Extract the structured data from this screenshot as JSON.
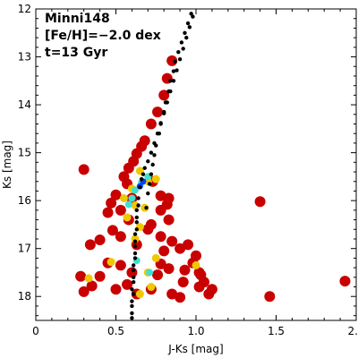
{
  "chart_data": {
    "type": "scatter",
    "title": "",
    "xlabel": "J-Ks [mag]",
    "ylabel": "Ks [mag]",
    "xlim": [
      0,
      2
    ],
    "ylim": [
      18.5,
      12
    ],
    "y_inverted": true,
    "x_ticks": [
      0,
      0.5,
      1.0,
      1.5,
      2.0
    ],
    "x_tick_labels": [
      "0",
      "0.5",
      "1.0",
      "1.5",
      "2.0"
    ],
    "y_ticks": [
      12,
      13,
      14,
      15,
      16,
      17,
      18
    ],
    "y_tick_labels": [
      "12",
      "13",
      "14",
      "15",
      "16",
      "17",
      "18"
    ],
    "grid": false,
    "legend": "none",
    "annotations": [
      "Minni148",
      "[Fe/H]=−2.0 dex",
      "t=13 Gyr"
    ],
    "colors": {
      "stars": "#c80000",
      "density_mid": "#f0c800",
      "density_high": "#40e0d0",
      "density_peak": "#0040ff",
      "isochrone": "#000000"
    },
    "series": [
      {
        "kind": "stars",
        "points": [
          [
            0.85,
            13.08
          ],
          [
            0.82,
            13.45
          ],
          [
            0.8,
            13.8
          ],
          [
            0.76,
            14.15
          ],
          [
            0.72,
            14.4
          ],
          [
            0.68,
            14.75
          ],
          [
            0.66,
            14.87
          ],
          [
            0.63,
            15.02
          ],
          [
            0.61,
            15.18
          ],
          [
            0.58,
            15.32
          ],
          [
            0.6,
            15.95
          ],
          [
            0.3,
            15.35
          ],
          [
            0.55,
            15.5
          ],
          [
            0.57,
            15.65
          ],
          [
            0.73,
            15.6
          ],
          [
            0.78,
            15.9
          ],
          [
            0.83,
            15.95
          ],
          [
            0.82,
            16.08
          ],
          [
            0.5,
            15.88
          ],
          [
            0.53,
            16.2
          ],
          [
            0.47,
            16.05
          ],
          [
            0.45,
            16.25
          ],
          [
            0.58,
            16.4
          ],
          [
            0.72,
            16.5
          ],
          [
            0.78,
            16.2
          ],
          [
            0.83,
            16.4
          ],
          [
            0.34,
            16.92
          ],
          [
            0.4,
            16.82
          ],
          [
            0.48,
            16.62
          ],
          [
            0.53,
            16.75
          ],
          [
            0.63,
            16.92
          ],
          [
            0.7,
            16.6
          ],
          [
            0.78,
            16.75
          ],
          [
            0.8,
            17.05
          ],
          [
            0.85,
            16.85
          ],
          [
            0.9,
            17.0
          ],
          [
            0.95,
            16.92
          ],
          [
            1.0,
            17.15
          ],
          [
            0.93,
            17.45
          ],
          [
            1.02,
            17.5
          ],
          [
            0.4,
            17.58
          ],
          [
            0.45,
            17.3
          ],
          [
            0.53,
            17.35
          ],
          [
            0.6,
            17.5
          ],
          [
            0.76,
            17.55
          ],
          [
            0.78,
            17.32
          ],
          [
            0.83,
            17.42
          ],
          [
            0.92,
            17.7
          ],
          [
            1.05,
            17.7
          ],
          [
            1.1,
            17.85
          ],
          [
            1.08,
            17.95
          ],
          [
            0.28,
            17.58
          ],
          [
            0.3,
            17.9
          ],
          [
            0.35,
            17.78
          ],
          [
            0.5,
            17.85
          ],
          [
            0.63,
            17.95
          ],
          [
            0.85,
            17.95
          ],
          [
            0.9,
            18.02
          ],
          [
            1.02,
            17.8
          ],
          [
            1.4,
            16.02
          ],
          [
            1.46,
            18.0
          ],
          [
            1.93,
            17.68
          ],
          [
            0.98,
            17.3
          ],
          [
            1.03,
            17.55
          ],
          [
            0.57,
            17.75
          ],
          [
            0.72,
            17.85
          ]
        ]
      },
      {
        "kind": "density_mid",
        "points": [
          [
            0.65,
            15.38
          ],
          [
            0.7,
            15.6
          ],
          [
            0.6,
            15.75
          ],
          [
            0.55,
            15.95
          ],
          [
            0.62,
            16.1
          ],
          [
            0.68,
            16.15
          ],
          [
            0.75,
            15.55
          ],
          [
            0.57,
            16.35
          ],
          [
            0.65,
            16.55
          ],
          [
            0.62,
            16.8
          ],
          [
            0.75,
            17.2
          ],
          [
            0.7,
            17.5
          ],
          [
            0.47,
            17.28
          ],
          [
            0.33,
            17.62
          ],
          [
            0.72,
            17.8
          ],
          [
            0.65,
            17.95
          ],
          [
            1.0,
            17.35
          ]
        ]
      },
      {
        "kind": "density_high",
        "points": [
          [
            0.66,
            15.62
          ],
          [
            0.62,
            15.78
          ],
          [
            0.7,
            15.5
          ],
          [
            0.6,
            15.95
          ],
          [
            0.58,
            16.08
          ],
          [
            0.71,
            17.5
          ],
          [
            0.63,
            17.25
          ]
        ]
      },
      {
        "kind": "density_peak",
        "points": [
          [
            0.67,
            15.6
          ],
          [
            0.65,
            15.7
          ]
        ]
      }
    ],
    "isochrone": [
      [
        0.6,
        18.45
      ],
      [
        0.6,
        18.2
      ],
      [
        0.61,
        17.95
      ],
      [
        0.61,
        17.7
      ],
      [
        0.61,
        17.45
      ],
      [
        0.62,
        17.2
      ],
      [
        0.62,
        16.95
      ],
      [
        0.62,
        16.7
      ],
      [
        0.63,
        16.45
      ],
      [
        0.63,
        16.2
      ],
      [
        0.64,
        15.95
      ],
      [
        0.65,
        15.72
      ],
      [
        0.66,
        15.55
      ],
      [
        0.67,
        15.45
      ],
      [
        0.68,
        15.32
      ],
      [
        0.7,
        15.18
      ],
      [
        0.72,
        15.0
      ],
      [
        0.74,
        14.8
      ],
      [
        0.76,
        14.6
      ],
      [
        0.78,
        14.4
      ],
      [
        0.8,
        14.18
      ],
      [
        0.82,
        13.95
      ],
      [
        0.84,
        13.72
      ],
      [
        0.86,
        13.5
      ],
      [
        0.88,
        13.28
      ],
      [
        0.9,
        13.05
      ],
      [
        0.92,
        12.83
      ],
      [
        0.94,
        12.6
      ],
      [
        0.96,
        12.38
      ],
      [
        0.98,
        12.16
      ],
      [
        0.6,
        18.35
      ],
      [
        0.6,
        18.1
      ],
      [
        0.6,
        17.85
      ],
      [
        0.61,
        17.6
      ],
      [
        0.61,
        17.35
      ],
      [
        0.62,
        17.1
      ],
      [
        0.62,
        16.85
      ],
      [
        0.63,
        16.6
      ],
      [
        0.63,
        16.35
      ],
      [
        0.64,
        16.1
      ],
      [
        0.69,
        16.15
      ],
      [
        0.7,
        15.85
      ],
      [
        0.71,
        15.65
      ],
      [
        0.72,
        15.45
      ],
      [
        0.73,
        15.25
      ],
      [
        0.74,
        15.05
      ],
      [
        0.75,
        14.85
      ],
      [
        0.77,
        14.6
      ],
      [
        0.78,
        14.38
      ],
      [
        0.8,
        14.15
      ],
      [
        0.81,
        13.95
      ],
      [
        0.83,
        13.72
      ],
      [
        0.84,
        13.5
      ],
      [
        0.86,
        13.3
      ],
      [
        0.87,
        13.1
      ],
      [
        0.89,
        12.9
      ],
      [
        0.91,
        12.7
      ],
      [
        0.93,
        12.5
      ],
      [
        0.95,
        12.3
      ],
      [
        0.97,
        12.1
      ]
    ]
  }
}
